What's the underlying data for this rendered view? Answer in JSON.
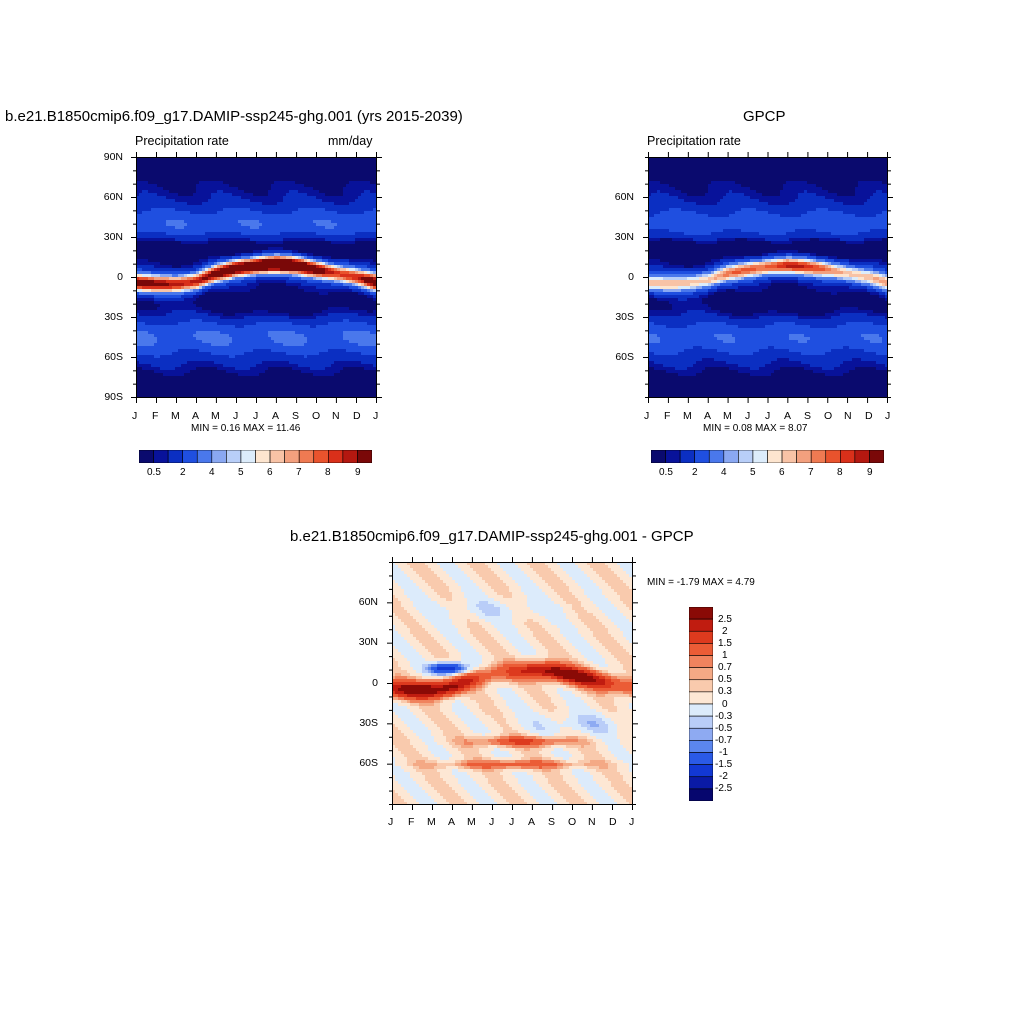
{
  "colors": {
    "precip_palette": [
      "#0a0a6e",
      "#08129a",
      "#0b2fc2",
      "#1f4fe0",
      "#4a78ec",
      "#8aa8f2",
      "#b8cef8",
      "#dcecfb",
      "#fde5cf",
      "#f8c3a6",
      "#f3a07e",
      "#ef7a52",
      "#e9532d",
      "#d9301a",
      "#b41810",
      "#7a0808"
    ],
    "diff_palette": [
      "#06066e",
      "#0a1aa6",
      "#1238d4",
      "#2a5ae6",
      "#5b86ee",
      "#8eaaf2",
      "#b9cdf8",
      "#dcebfb",
      "#fde7d4",
      "#f9caad",
      "#f4a985",
      "#f0835e",
      "#eb5c36",
      "#dd3a1e",
      "#c01c10",
      "#8a0a06"
    ]
  },
  "panels": {
    "model": {
      "title": "b.e21.B1850cmip6.f09_g17.DAMIP-ssp245-ghg.001 (yrs 2015-2039)",
      "left_label": "Precipitation rate",
      "right_label": "mm/day",
      "stats": "MIN =   0.16 MAX =  11.46",
      "ylabels": [
        "90N",
        "60N",
        "30N",
        "0",
        "30S",
        "60S",
        "90S"
      ],
      "xlabels": [
        "J",
        "F",
        "M",
        "A",
        "M",
        "J",
        "J",
        "A",
        "S",
        "O",
        "N",
        "D",
        "J"
      ],
      "colorbar_labels": [
        "0.5",
        "2",
        "4",
        "5",
        "6",
        "7",
        "8",
        "9"
      ]
    },
    "obs": {
      "title": "GPCP",
      "left_label": "Precipitation rate",
      "stats": "MIN =   0.08 MAX =   8.07",
      "ylabels": [
        "60N",
        "30N",
        "0",
        "30S",
        "60S"
      ],
      "xlabels": [
        "J",
        "F",
        "M",
        "A",
        "M",
        "J",
        "J",
        "A",
        "S",
        "O",
        "N",
        "D",
        "J"
      ],
      "colorbar_labels": [
        "0.5",
        "2",
        "4",
        "5",
        "6",
        "7",
        "8",
        "9"
      ]
    },
    "diff": {
      "title": "b.e21.B1850cmip6.f09_g17.DAMIP-ssp245-ghg.001 - GPCP",
      "stats": "MIN =  -1.79 MAX =   4.79",
      "ylabels": [
        "60N",
        "30N",
        "0",
        "30S",
        "60S"
      ],
      "xlabels": [
        "J",
        "F",
        "M",
        "A",
        "M",
        "J",
        "J",
        "A",
        "S",
        "O",
        "N",
        "D",
        "J"
      ],
      "colorbar_labels": [
        "2.5",
        "2",
        "1.5",
        "1",
        "0.7",
        "0.5",
        "0.3",
        "0",
        "-0.3",
        "-0.5",
        "-0.7",
        "-1",
        "-1.5",
        "-2",
        "-2.5"
      ]
    }
  },
  "chart_data": [
    {
      "type": "heatmap",
      "title": "b.e21.B1850cmip6.f09_g17.DAMIP-ssp245-ghg.001 (yrs 2015-2039)",
      "subtitle_left": "Precipitation rate",
      "subtitle_right": "mm/day",
      "x": [
        "J",
        "F",
        "M",
        "A",
        "M",
        "J",
        "J",
        "A",
        "S",
        "O",
        "N",
        "D",
        "J"
      ],
      "y_range": [
        -90,
        90
      ],
      "y_ticks": [
        "90N",
        "60N",
        "30N",
        "0",
        "30S",
        "60S",
        "90S"
      ],
      "min": 0.16,
      "max": 11.46,
      "contour_levels": [
        0.5,
        1,
        2,
        3,
        4,
        4.5,
        5,
        5.5,
        6,
        6.5,
        7,
        7.5,
        8,
        8.5,
        9
      ],
      "itcz_latitude_by_month": [
        -4,
        -5,
        -5,
        -3,
        3,
        7,
        9,
        10,
        9,
        6,
        3,
        0,
        -4
      ],
      "itcz_peak_mm_day": [
        9.5,
        8.5,
        8.0,
        8.5,
        9.0,
        10.0,
        11.0,
        11.46,
        10.5,
        9.5,
        8.0,
        8.0,
        9.5
      ]
    },
    {
      "type": "heatmap",
      "title": "GPCP",
      "subtitle_left": "Precipitation rate",
      "x": [
        "J",
        "F",
        "M",
        "A",
        "M",
        "J",
        "J",
        "A",
        "S",
        "O",
        "N",
        "D",
        "J"
      ],
      "y_range": [
        -90,
        90
      ],
      "y_ticks": [
        "60N",
        "30N",
        "0",
        "30S",
        "60S"
      ],
      "min": 0.08,
      "max": 8.07,
      "contour_levels": [
        0.5,
        1,
        2,
        3,
        4,
        4.5,
        5,
        5.5,
        6,
        6.5,
        7,
        7.5,
        8,
        8.5,
        9
      ],
      "itcz_latitude_by_month": [
        -4,
        -5,
        -4,
        -2,
        3,
        6,
        8,
        9,
        8,
        6,
        3,
        0,
        -4
      ],
      "itcz_peak_mm_day": [
        6.0,
        5.5,
        5.5,
        6.0,
        6.5,
        7.0,
        7.5,
        8.07,
        7.5,
        6.8,
        6.0,
        5.8,
        6.0
      ]
    },
    {
      "type": "heatmap",
      "title": "b.e21.B1850cmip6.f09_g17.DAMIP-ssp245-ghg.001 - GPCP",
      "x": [
        "J",
        "F",
        "M",
        "A",
        "M",
        "J",
        "J",
        "A",
        "S",
        "O",
        "N",
        "D",
        "J"
      ],
      "y_range": [
        -90,
        90
      ],
      "y_ticks": [
        "60N",
        "30N",
        "0",
        "30S",
        "60S"
      ],
      "min": -1.79,
      "max": 4.79,
      "contour_levels": [
        -2.5,
        -2,
        -1.5,
        -1,
        -0.7,
        -0.5,
        -0.3,
        0,
        0.3,
        0.5,
        0.7,
        1,
        1.5,
        2,
        2.5
      ]
    }
  ]
}
